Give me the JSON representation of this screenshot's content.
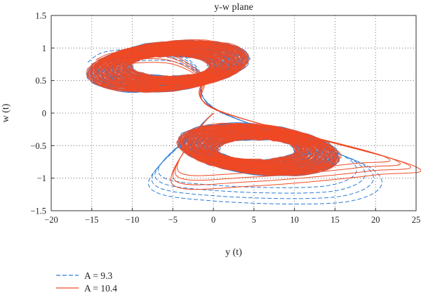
{
  "chart_data": {
    "type": "line",
    "title": "y-w plane",
    "xlabel": "y (t)",
    "ylabel": "w (t)",
    "xlim": [
      -20,
      25
    ],
    "ylim": [
      -1.5,
      1.5
    ],
    "x_ticks": [
      -20,
      -15,
      -10,
      -5,
      0,
      5,
      10,
      15,
      20,
      25
    ],
    "y_ticks": [
      -1.5,
      -1,
      -0.5,
      0,
      0.5,
      1,
      1.5
    ],
    "x_tick_labels": [
      "−20",
      "−15",
      "−10",
      "−5",
      "0",
      "5",
      "10",
      "15",
      "20",
      "25"
    ],
    "y_tick_labels": [
      "−1.5",
      "−1",
      "−0.5",
      "0",
      "0.5",
      "1",
      "1.5"
    ],
    "grid": "dotted",
    "legend_placement": "bottom-left, outside plot area",
    "series": [
      {
        "name": "A = 9.3",
        "color": "#2b7bd6",
        "style": "dashed",
        "extent_y": [
          -15,
          19
        ],
        "extent_w": [
          -1.35,
          1.0
        ],
        "lobe_centers": [
          [
            -5,
            0.72
          ],
          [
            5,
            -0.55
          ]
        ],
        "outer_loop_points": [
          [
            -15.5,
            0.78
          ],
          [
            -13,
            0.95
          ],
          [
            -6,
            0.97
          ],
          [
            -2,
            0.7
          ],
          [
            0.5,
            0.05
          ],
          [
            19.5,
            -0.85
          ],
          [
            17,
            -1.35
          ],
          [
            0,
            -1.35
          ],
          [
            -8,
            -1.1
          ],
          [
            -2,
            -0.25
          ],
          [
            0,
            0
          ]
        ]
      },
      {
        "name": "A = 10.4",
        "color": "#f04a24",
        "style": "solid",
        "extent_y": [
          -15,
          24.5
        ],
        "extent_w": [
          -1.1,
          0.93
        ],
        "lobe_centers": [
          [
            -5,
            0.72
          ],
          [
            5,
            -0.55
          ]
        ],
        "outer_loop_points": [
          [
            -14.5,
            0.82
          ],
          [
            -12,
            0.93
          ],
          [
            -6,
            0.92
          ],
          [
            -1.5,
            0.6
          ],
          [
            0.5,
            0.05
          ],
          [
            24.5,
            -0.8
          ],
          [
            20,
            -0.95
          ],
          [
            5,
            -1.12
          ],
          [
            -5,
            -1.1
          ],
          [
            -2,
            -0.3
          ],
          [
            0,
            0
          ]
        ]
      }
    ],
    "legend": {
      "entries": [
        "A = 9.3",
        "A = 10.4"
      ]
    }
  }
}
